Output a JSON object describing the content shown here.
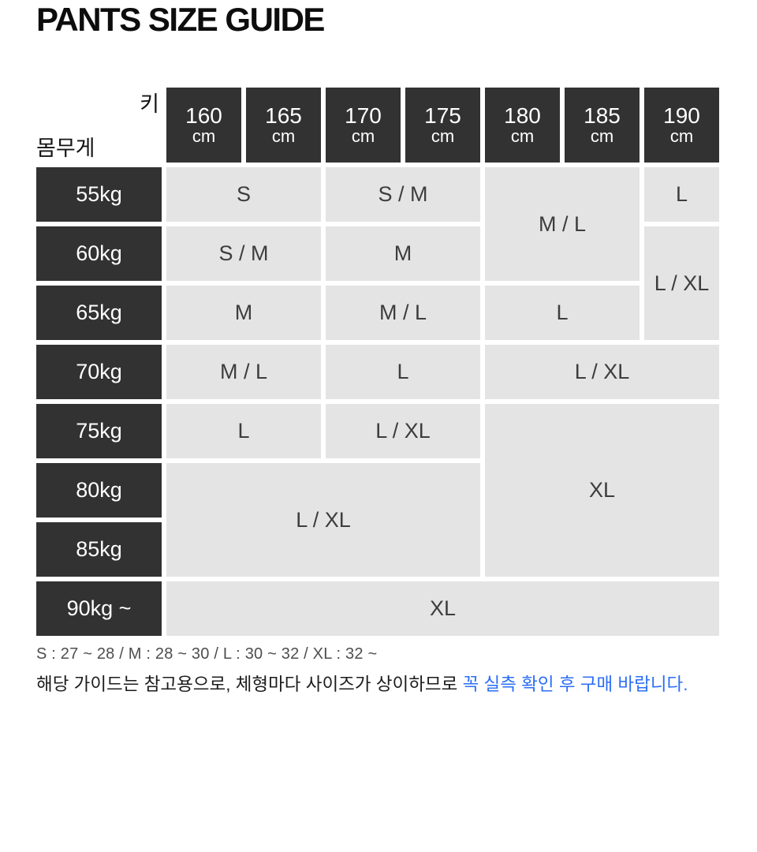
{
  "title": "PANTS SIZE GUIDE",
  "table": {
    "corner": {
      "height_label": "키",
      "weight_label": "몸무게"
    },
    "height_columns": [
      {
        "value": "160",
        "unit": "cm"
      },
      {
        "value": "165",
        "unit": "cm"
      },
      {
        "value": "170",
        "unit": "cm"
      },
      {
        "value": "175",
        "unit": "cm"
      },
      {
        "value": "180",
        "unit": "cm"
      },
      {
        "value": "185",
        "unit": "cm"
      },
      {
        "value": "190",
        "unit": "cm"
      }
    ],
    "weight_rows": [
      "55kg",
      "60kg",
      "65kg",
      "70kg",
      "75kg",
      "80kg",
      "85kg",
      "90kg ~"
    ],
    "cells": [
      {
        "row": 1,
        "col": 1,
        "rowspan": 1,
        "colspan": 2,
        "label": "S"
      },
      {
        "row": 1,
        "col": 3,
        "rowspan": 1,
        "colspan": 2,
        "label": "S / M"
      },
      {
        "row": 1,
        "col": 5,
        "rowspan": 2,
        "colspan": 2,
        "label": "M / L"
      },
      {
        "row": 1,
        "col": 7,
        "rowspan": 1,
        "colspan": 1,
        "label": "L"
      },
      {
        "row": 2,
        "col": 1,
        "rowspan": 1,
        "colspan": 2,
        "label": "S / M"
      },
      {
        "row": 2,
        "col": 3,
        "rowspan": 1,
        "colspan": 2,
        "label": "M"
      },
      {
        "row": 2,
        "col": 7,
        "rowspan": 2,
        "colspan": 1,
        "label": "L / XL"
      },
      {
        "row": 3,
        "col": 1,
        "rowspan": 1,
        "colspan": 2,
        "label": "M"
      },
      {
        "row": 3,
        "col": 3,
        "rowspan": 1,
        "colspan": 2,
        "label": "M / L"
      },
      {
        "row": 3,
        "col": 5,
        "rowspan": 1,
        "colspan": 2,
        "label": "L"
      },
      {
        "row": 4,
        "col": 1,
        "rowspan": 1,
        "colspan": 2,
        "label": "M / L"
      },
      {
        "row": 4,
        "col": 3,
        "rowspan": 1,
        "colspan": 2,
        "label": "L"
      },
      {
        "row": 4,
        "col": 5,
        "rowspan": 1,
        "colspan": 3,
        "label": "L / XL"
      },
      {
        "row": 5,
        "col": 1,
        "rowspan": 1,
        "colspan": 2,
        "label": "L"
      },
      {
        "row": 5,
        "col": 3,
        "rowspan": 1,
        "colspan": 2,
        "label": "L / XL"
      },
      {
        "row": 5,
        "col": 5,
        "rowspan": 3,
        "colspan": 3,
        "label": "XL"
      },
      {
        "row": 6,
        "col": 1,
        "rowspan": 2,
        "colspan": 4,
        "label": "L / XL"
      },
      {
        "row": 8,
        "col": 1,
        "rowspan": 1,
        "colspan": 7,
        "label": "XL"
      }
    ]
  },
  "footer": {
    "size_legend": "S : 27 ~ 28  /  M : 28 ~ 30  /  L : 30 ~ 32  /  XL : 32 ~",
    "notice_prefix": "해당 가이드는 참고용으로, 체형마다 사이즈가 상이하므로 ",
    "notice_highlight": "꼭 실측 확인 후 구매 바랍니다."
  },
  "colors": {
    "header_bg": "#323232",
    "header_text": "#ffffff",
    "cell_bg": "#e4e4e4",
    "cell_text": "#3d3d3d",
    "notice_highlight": "#2b6ef5"
  },
  "chart_data": {
    "type": "table",
    "title": "PANTS SIZE GUIDE",
    "columns": [
      "160cm",
      "165cm",
      "170cm",
      "175cm",
      "180cm",
      "185cm",
      "190cm"
    ],
    "rows": [
      "55kg",
      "60kg",
      "65kg",
      "70kg",
      "75kg",
      "80kg",
      "85kg",
      "90kg ~"
    ],
    "matrix": [
      [
        "S",
        "S",
        "S / M",
        "S / M",
        "M / L",
        "M / L",
        "L"
      ],
      [
        "S / M",
        "S / M",
        "M",
        "M",
        "M / L",
        "M / L",
        "L / XL"
      ],
      [
        "M",
        "M",
        "M / L",
        "M / L",
        "L",
        "L",
        "L / XL"
      ],
      [
        "M / L",
        "M / L",
        "L",
        "L",
        "L / XL",
        "L / XL",
        "L / XL"
      ],
      [
        "L",
        "L",
        "L / XL",
        "L / XL",
        "XL",
        "XL",
        "XL"
      ],
      [
        "L / XL",
        "L / XL",
        "L / XL",
        "L / XL",
        "XL",
        "XL",
        "XL"
      ],
      [
        "L / XL",
        "L / XL",
        "L / XL",
        "L / XL",
        "XL",
        "XL",
        "XL"
      ],
      [
        "XL",
        "XL",
        "XL",
        "XL",
        "XL",
        "XL",
        "XL"
      ]
    ],
    "legend": "S : 27 ~ 28 / M : 28 ~ 30 / L : 30 ~ 32 / XL : 32 ~"
  }
}
